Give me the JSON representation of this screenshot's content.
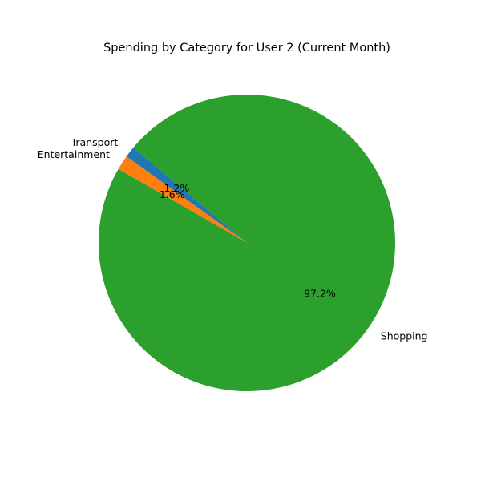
{
  "chart_data": {
    "type": "pie",
    "title": "Spending by Category for User 2 (Current Month)",
    "start_angle_deg": 140,
    "direction": "counterclockwise",
    "slices": [
      {
        "label": "Transport",
        "value": 1.2,
        "pct_label": "1.2%",
        "color": "#1f77b4"
      },
      {
        "label": "Entertainment",
        "value": 1.6,
        "pct_label": "1.6%",
        "color": "#ff7f0e"
      },
      {
        "label": "Shopping",
        "value": 97.2,
        "pct_label": "97.2%",
        "color": "#2ca02c"
      }
    ]
  }
}
